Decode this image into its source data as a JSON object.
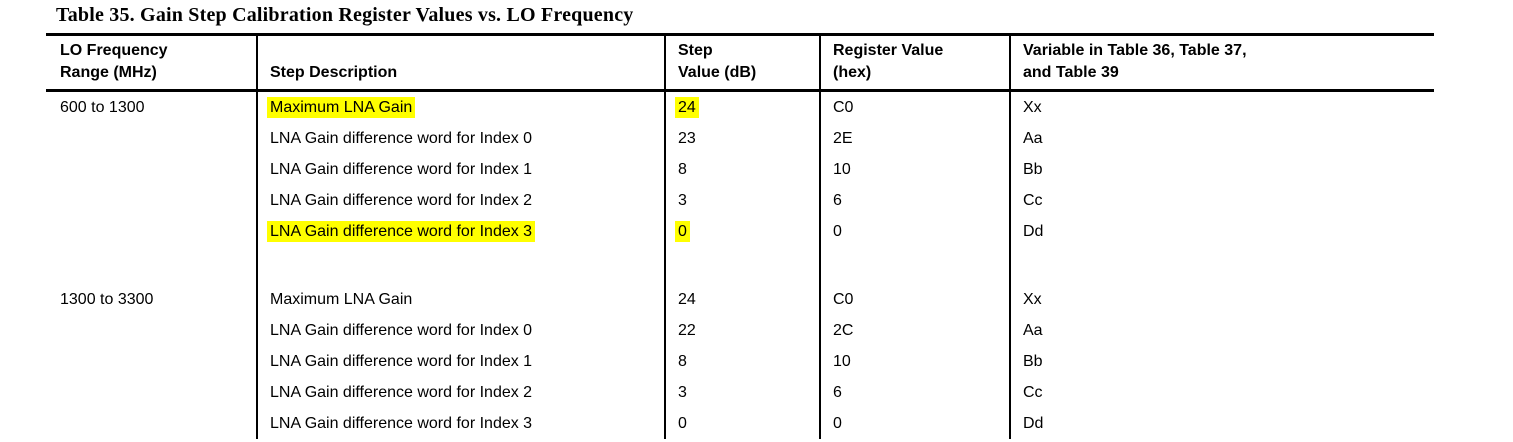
{
  "title": "Table 35. Gain Step Calibration Register Values vs. LO Frequency",
  "colors": {
    "highlight": "#ffff00",
    "border": "#000000",
    "text": "#000000",
    "background": "#ffffff"
  },
  "table": {
    "headers": [
      [
        "LO Frequency",
        "Range (MHz)"
      ],
      [
        "Step Description"
      ],
      [
        "Step",
        "Value (dB)"
      ],
      [
        "Register Value",
        "(hex)"
      ],
      [
        "Variable in Table 36, Table 37,",
        "and Table 39"
      ]
    ],
    "groups": [
      {
        "range": "600 to 1300",
        "rows": [
          {
            "desc": "Maximum LNA Gain",
            "step": "24",
            "reg": "C0",
            "var": "Xx",
            "highlighted": true
          },
          {
            "desc": "LNA Gain difference word for Index 0",
            "step": "23",
            "reg": "2E",
            "var": "Aa",
            "highlighted": false
          },
          {
            "desc": "LNA Gain difference word for Index 1",
            "step": "8",
            "reg": "10",
            "var": "Bb",
            "highlighted": false
          },
          {
            "desc": "LNA Gain difference word for Index 2",
            "step": "3",
            "reg": "6",
            "var": "Cc",
            "highlighted": false
          },
          {
            "desc": "LNA Gain difference word for Index 3",
            "step": "0",
            "reg": "0",
            "var": "Dd",
            "highlighted": true
          }
        ]
      },
      {
        "range": "1300 to 3300",
        "rows": [
          {
            "desc": "Maximum LNA Gain",
            "step": "24",
            "reg": "C0",
            "var": "Xx",
            "highlighted": false
          },
          {
            "desc": "LNA Gain difference word for Index 0",
            "step": "22",
            "reg": "2C",
            "var": "Aa",
            "highlighted": false
          },
          {
            "desc": "LNA Gain difference word for Index 1",
            "step": "8",
            "reg": "10",
            "var": "Bb",
            "highlighted": false
          },
          {
            "desc": "LNA Gain difference word for Index 2",
            "step": "3",
            "reg": "6",
            "var": "Cc",
            "highlighted": false
          },
          {
            "desc": "LNA Gain difference word for Index 3",
            "step": "0",
            "reg": "0",
            "var": "Dd",
            "highlighted": false
          }
        ]
      }
    ]
  }
}
